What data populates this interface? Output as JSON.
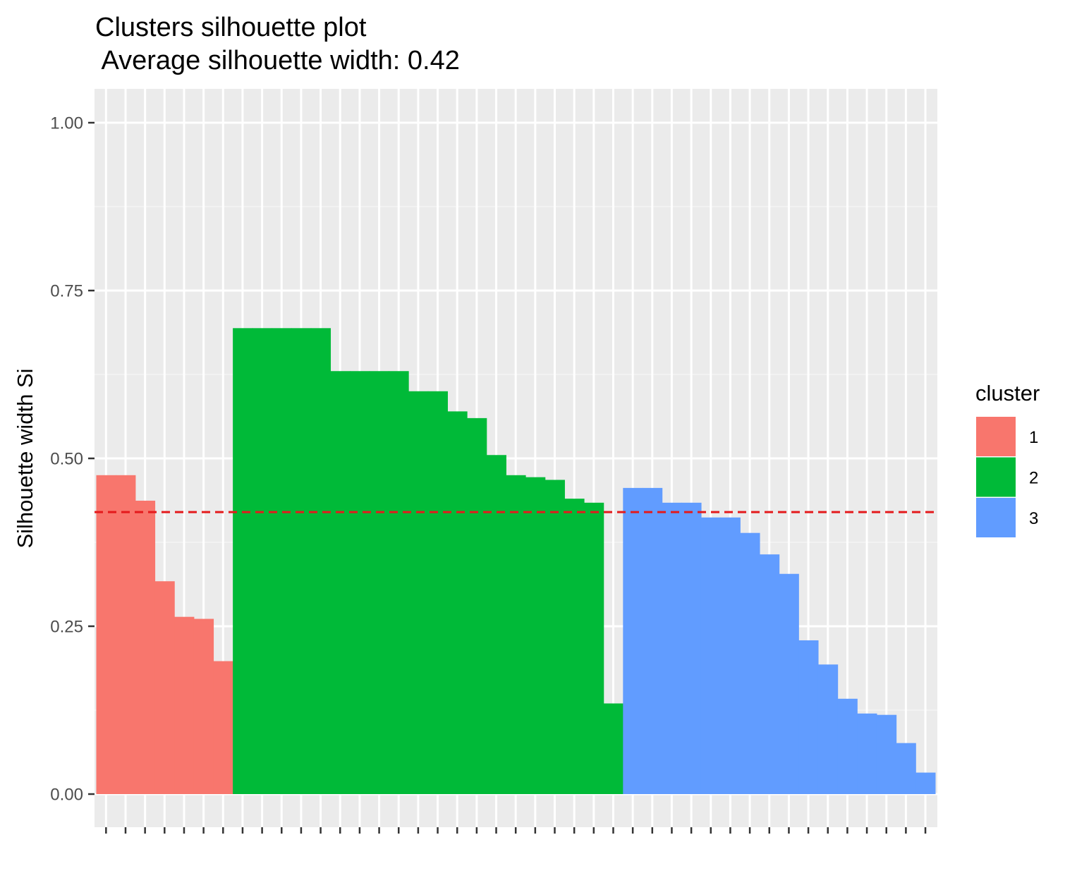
{
  "chart_data": {
    "type": "bar",
    "title": "Clusters silhouette plot",
    "subtitle": " Average silhouette width: 0.42",
    "xlabel": "",
    "ylabel": "Silhouette width Si",
    "ylim": [
      0,
      1.05
    ],
    "yticks": [
      "0.00",
      "0.25",
      "0.50",
      "0.75",
      "1.00"
    ],
    "ytick_values": [
      0,
      0.25,
      0.5,
      0.75,
      1.0
    ],
    "grid": true,
    "average_line": {
      "value": 0.42,
      "color": "#e41a1c",
      "style": "dashed"
    },
    "legend": {
      "title": "cluster",
      "placement": "right",
      "entries": [
        {
          "label": "1",
          "color": "#F8766D"
        },
        {
          "label": "2",
          "color": "#00BA38"
        },
        {
          "label": "3",
          "color": "#619CFF"
        }
      ]
    },
    "series": [
      {
        "name": "1",
        "color": "#F8766D",
        "values": [
          0.475,
          0.475,
          0.437,
          0.317,
          0.264,
          0.261,
          0.198
        ]
      },
      {
        "name": "2",
        "color": "#00BA38",
        "values": [
          0.694,
          0.694,
          0.694,
          0.694,
          0.694,
          0.63,
          0.63,
          0.63,
          0.63,
          0.6,
          0.6,
          0.57,
          0.56,
          0.505,
          0.475,
          0.472,
          0.468,
          0.44,
          0.434,
          0.135
        ]
      },
      {
        "name": "3",
        "color": "#619CFF",
        "values": [
          0.456,
          0.456,
          0.434,
          0.434,
          0.412,
          0.412,
          0.389,
          0.357,
          0.328,
          0.229,
          0.193,
          0.142,
          0.12,
          0.118,
          0.076,
          0.032
        ]
      }
    ]
  }
}
